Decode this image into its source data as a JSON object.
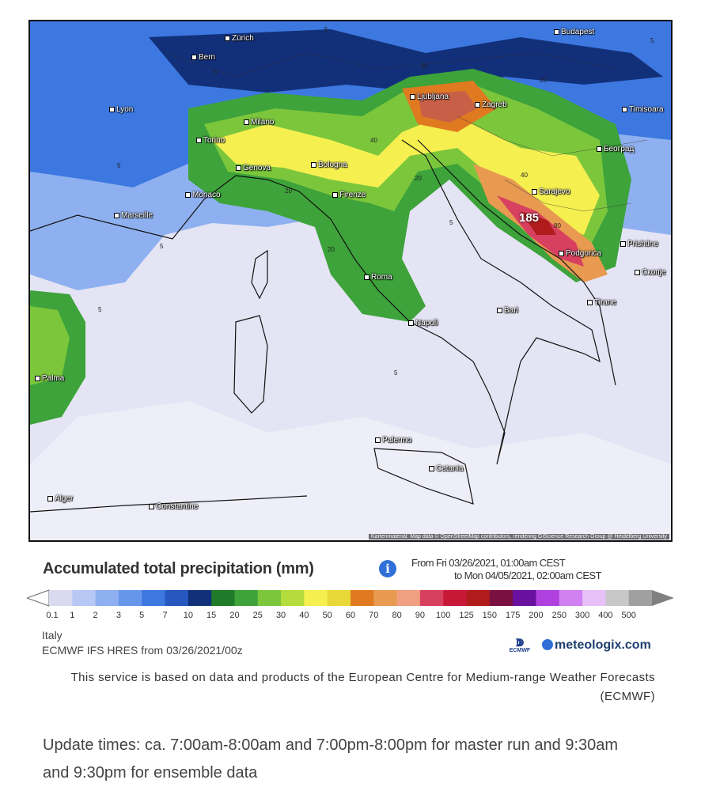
{
  "map": {
    "cities": [
      "Zürich",
      "Budapest",
      "Bern",
      "Ljubljana",
      "Zagreb",
      "Timisoara",
      "Lyon",
      "Milano",
      "Torino",
      "Београд",
      "Genova",
      "Bologna",
      "Monaco",
      "Firenze",
      "Sarajevo",
      "Marseille",
      "Prishtine",
      "Podgorica",
      "Скопје",
      "Roma",
      "Tirane",
      "Bari",
      "Napoli",
      "Palma",
      "Palermo",
      "Catania",
      "Alger",
      "Constantine"
    ],
    "peak_value": "185",
    "contour_labels": [
      "5",
      "5",
      "5",
      "20",
      "20",
      "40",
      "40",
      "20",
      "20",
      "5",
      "5",
      "5",
      "20",
      "80",
      "5",
      "5"
    ],
    "attribution": "Kartenmaterial: Map data © OpenStreetMap contributors, rendering GIScience Research Group @ Heidelberg University"
  },
  "legend": {
    "title": "Accumulated total precipitation (mm)",
    "period_from": "From Fri 03/26/2021, 01:00am CEST",
    "period_to": "to Mon 04/05/2021, 02:00am CEST",
    "ticks": [
      "0.1",
      "1",
      "2",
      "3",
      "5",
      "7",
      "10",
      "15",
      "20",
      "25",
      "30",
      "40",
      "50",
      "60",
      "70",
      "80",
      "90",
      "100",
      "125",
      "150",
      "175",
      "200",
      "250",
      "300",
      "400",
      "500"
    ],
    "colors": [
      "#d9d9f0",
      "#b8c8f4",
      "#8fb0f0",
      "#6596ea",
      "#3d78e0",
      "#2758c0",
      "#12307a",
      "#1f7a2a",
      "#3da33a",
      "#7cc63c",
      "#b4dc3c",
      "#f5f050",
      "#e8d838",
      "#e07a20",
      "#e89a50",
      "#f0a080",
      "#d84060",
      "#c81838",
      "#b01c1c",
      "#7a1040",
      "#6a10a0",
      "#b040e0",
      "#d080f0",
      "#e8c0f8",
      "#c8c8c8",
      "#a0a0a0"
    ]
  },
  "footer": {
    "region": "Italy",
    "model": "ECMWF IFS HRES from 03/26/2021/00z",
    "ecmwf_logo": "ECMWF",
    "brand": "meteologix.com",
    "disclaimer": "This service is based on data and products of the European Centre for Medium-range Weather Forecasts (ECMWF)",
    "update_note": "Update times: ca. 7:00am-8:00am and 7:00pm-8:00pm for master run and 9:30am and 9:30pm for ensemble data"
  }
}
